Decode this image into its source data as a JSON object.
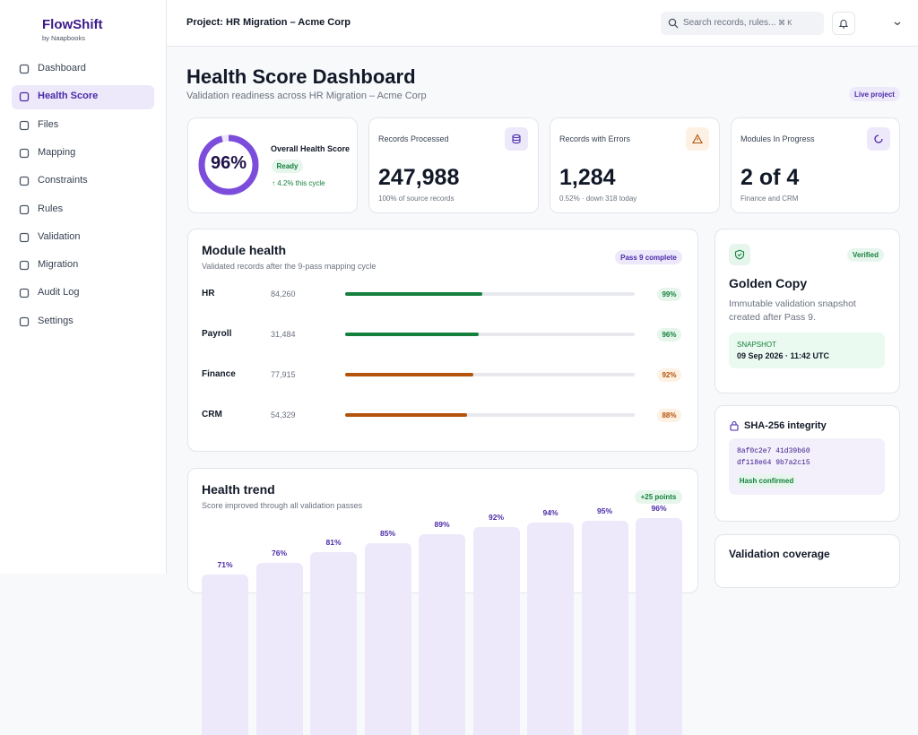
{
  "sidebar": {
    "brand": "FlowShift",
    "byline": "by Naapbooks",
    "nav": [
      "Dashboard",
      "Health Score",
      "Files",
      "Mapping",
      "Constraints",
      "Rules",
      "Validation",
      "Migration",
      "Audit Log",
      "Settings"
    ],
    "active": 1
  },
  "topbar": {
    "project": "Project: HR Migration – Acme Corp",
    "search_placeholder": "Search records, rules...",
    "shortcut": "⌘ K"
  },
  "header": {
    "title": "Health Score Dashboard",
    "subtitle": "Validation readiness across HR Migration – Acme Corp",
    "badge": "Live project"
  },
  "health": {
    "label": "Overall Health Score",
    "score": 96,
    "score_label": "96%",
    "status": "Ready",
    "delta": "↑ 4.2% this cycle"
  },
  "stats": [
    {
      "label": "Records Processed",
      "value": "247,988",
      "note": "100% of source records"
    },
    {
      "label": "Records with Errors",
      "value": "1,284",
      "note": "0.52% · down 318 today"
    },
    {
      "label": "Modules In Progress",
      "value": "2 of 4",
      "note": "Finance and CRM"
    }
  ],
  "modules": {
    "title": "Module health",
    "subtitle": "Validated records after the 9-pass mapping cycle",
    "badge": "Pass 9 complete",
    "rows": [
      {
        "name": "HR",
        "records": "84,260",
        "pct": 99,
        "pct_label": "99%",
        "color": "#15803d"
      },
      {
        "name": "Payroll",
        "records": "31,484",
        "pct": 96,
        "pct_label": "96%",
        "color": "#15803d"
      },
      {
        "name": "Finance",
        "records": "77,915",
        "pct": 92,
        "pct_label": "92%",
        "color": "#b45309"
      },
      {
        "name": "CRM",
        "records": "54,329",
        "pct": 88,
        "pct_label": "88%",
        "color": "#b45309"
      }
    ]
  },
  "golden": {
    "badge": "Verified",
    "title": "Golden Copy",
    "description": "Immutable validation snapshot created after Pass 9.",
    "snapshot_label": "SNAPSHOT",
    "snapshot_date": "09 Sep 2026 · 11:42 UTC"
  },
  "integrity": {
    "title": "SHA-256 integrity",
    "hash": [
      "8af0c2e7 41d39b60",
      "df118e64 9b7a2c15"
    ],
    "status": "Hash confirmed"
  },
  "coverage": {
    "title": "Validation coverage"
  },
  "trend": {
    "title": "Health trend",
    "subtitle": "Score improved through all validation passes",
    "badge": "+25 points",
    "values": [
      71,
      76,
      81,
      85,
      89,
      92,
      94,
      95,
      96
    ],
    "value_labels": [
      "71%",
      "76%",
      "81%",
      "85%",
      "89%",
      "92%",
      "94%",
      "95%",
      "96%"
    ],
    "color": "#ede9fb"
  }
}
